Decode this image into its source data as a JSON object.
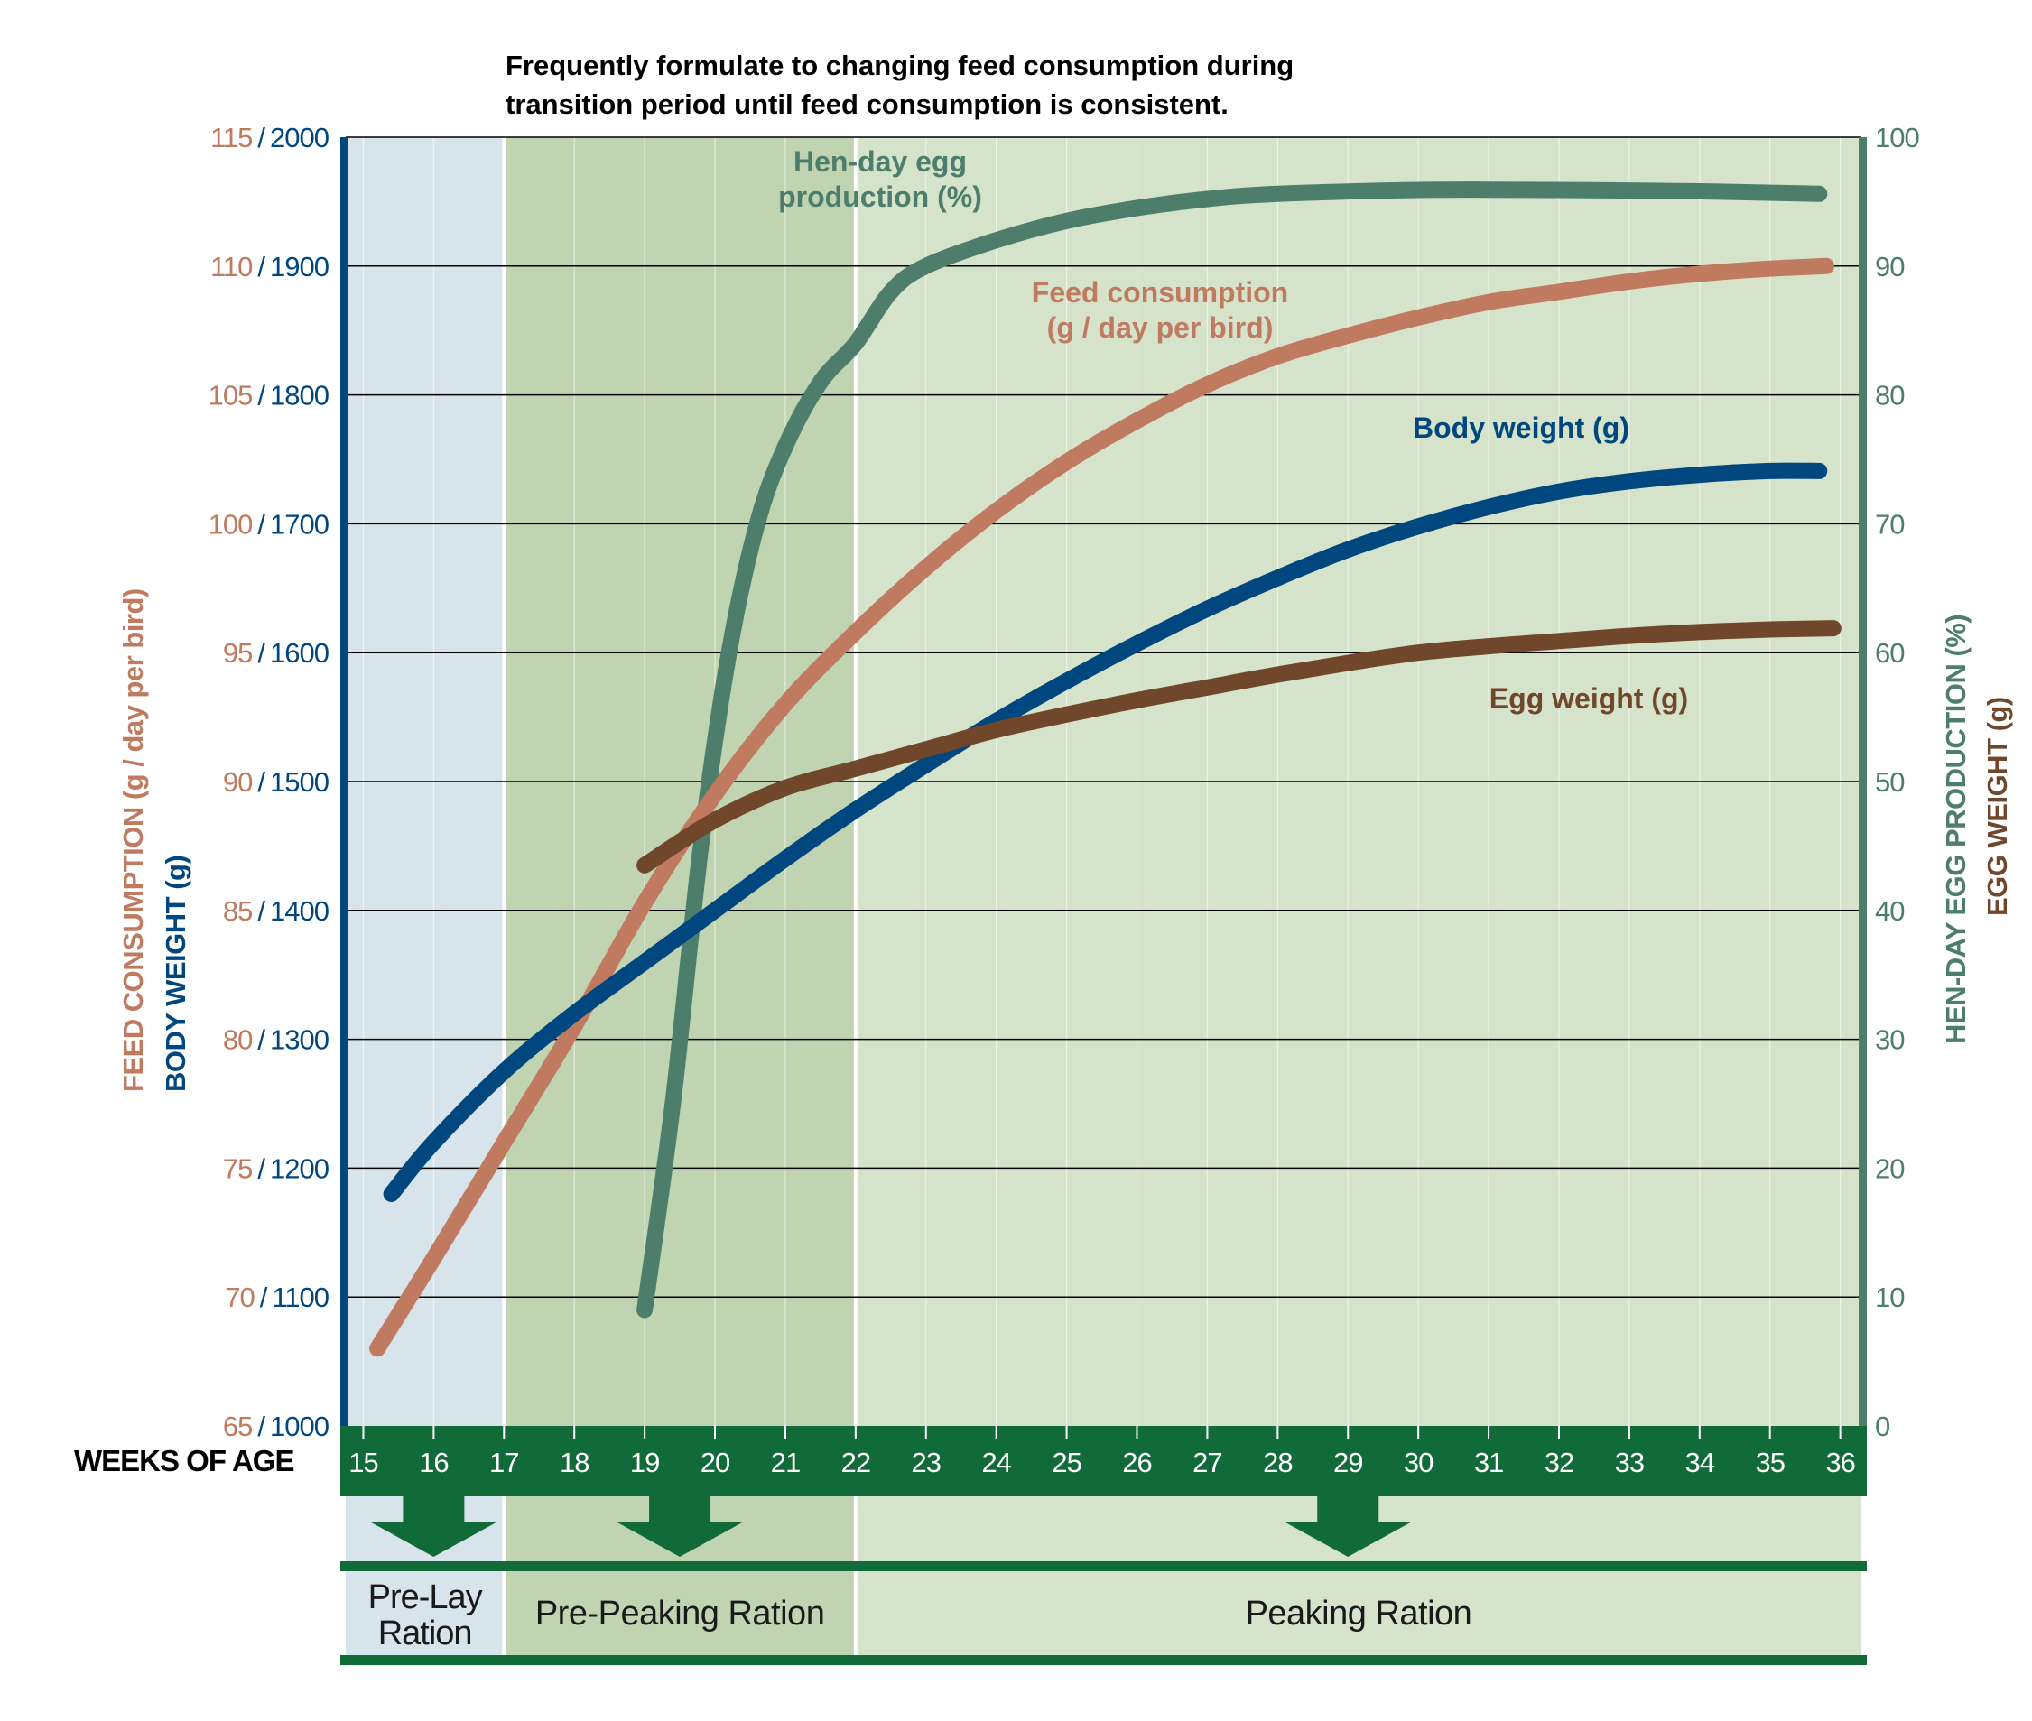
{
  "colors": {
    "feed": "#c07a60",
    "body": "#00467f",
    "egg_prod": "#4d7e6c",
    "egg_weight": "#70472a",
    "band": "#106b38",
    "prelay_bg": "#d8e4ec",
    "prepeak_bg": "#c0d4b2",
    "peak_bg": "#d6e3cb"
  },
  "header": {
    "line1": "Frequently formulate to changing feed consumption during",
    "line2": "transition period until feed consumption is consistent."
  },
  "axes": {
    "x_label": "WEEKS OF AGE",
    "left_label_feed": "FEED CONSUMPTION (g / day per bird)",
    "left_label_body": "BODY WEIGHT (g)",
    "right_label_prod": "HEN-DAY EGG PRODUCTION (%)",
    "right_label_egg": "EGG WEIGHT (g)",
    "left_separator": "/"
  },
  "phases": [
    {
      "name": "prelay",
      "lines": [
        "Pre-Lay",
        "Ration"
      ],
      "x_start": 15,
      "x_end": 17
    },
    {
      "name": "prepeak",
      "lines": [
        "Pre-Peaking Ration"
      ],
      "x_start": 17,
      "x_end": 22
    },
    {
      "name": "peak",
      "lines": [
        "Peaking Ration"
      ],
      "x_start": 22,
      "x_end": 36.3
    }
  ],
  "chart_data": {
    "type": "line",
    "x_ticks": [
      15,
      16,
      17,
      18,
      19,
      20,
      21,
      22,
      23,
      24,
      25,
      26,
      27,
      28,
      29,
      30,
      31,
      32,
      33,
      34,
      35,
      36
    ],
    "left_ticks_feed": [
      65,
      70,
      75,
      80,
      85,
      90,
      95,
      100,
      105,
      110,
      115
    ],
    "left_ticks_body": [
      1000,
      1100,
      1200,
      1300,
      1400,
      1500,
      1600,
      1700,
      1800,
      1900,
      2000
    ],
    "right_ticks": [
      0,
      10,
      20,
      30,
      40,
      50,
      60,
      70,
      80,
      90,
      100
    ],
    "xlim": [
      14.75,
      36.3
    ],
    "ylim_feed": [
      65,
      115
    ],
    "ylim_body": [
      1000,
      2000
    ],
    "ylim_right": [
      0,
      100
    ],
    "series": [
      {
        "name": "Hen-day egg production (%)",
        "label_lines": [
          "Hen-day egg",
          "production (%)"
        ],
        "axis": "right",
        "color_key": "egg_prod",
        "points": [
          [
            19,
            9
          ],
          [
            19.4,
            25
          ],
          [
            19.8,
            45
          ],
          [
            20.2,
            60
          ],
          [
            20.6,
            70
          ],
          [
            21,
            76
          ],
          [
            21.5,
            81
          ],
          [
            22,
            84
          ],
          [
            22.5,
            88
          ],
          [
            23,
            90
          ],
          [
            24,
            92
          ],
          [
            25,
            93.5
          ],
          [
            26,
            94.5
          ],
          [
            27,
            95.2
          ],
          [
            28,
            95.6
          ],
          [
            30,
            95.9
          ],
          [
            32,
            95.9
          ],
          [
            34,
            95.8
          ],
          [
            35.7,
            95.6
          ]
        ]
      },
      {
        "name": "Feed consumption (g / day per bird)",
        "label_lines": [
          "Feed consumption",
          "(g / day per bird)"
        ],
        "axis": "left_feed",
        "color_key": "feed",
        "points": [
          [
            15.2,
            68
          ],
          [
            16,
            71.5
          ],
          [
            17,
            76
          ],
          [
            18,
            80.5
          ],
          [
            19,
            85.3
          ],
          [
            20,
            89.5
          ],
          [
            21,
            93
          ],
          [
            22,
            95.8
          ],
          [
            23,
            98.3
          ],
          [
            24,
            100.5
          ],
          [
            25,
            102.4
          ],
          [
            26,
            104
          ],
          [
            27,
            105.4
          ],
          [
            28,
            106.5
          ],
          [
            29,
            107.3
          ],
          [
            30,
            108
          ],
          [
            31,
            108.6
          ],
          [
            32,
            109
          ],
          [
            33,
            109.4
          ],
          [
            34,
            109.7
          ],
          [
            35,
            109.9
          ],
          [
            35.8,
            110
          ]
        ]
      },
      {
        "name": "Body weight (g)",
        "label_lines": [
          "Body weight (g)"
        ],
        "axis": "left_body",
        "color_key": "body",
        "points": [
          [
            15.4,
            1180
          ],
          [
            16,
            1220
          ],
          [
            17,
            1275
          ],
          [
            18,
            1320
          ],
          [
            19,
            1360
          ],
          [
            20,
            1400
          ],
          [
            21,
            1440
          ],
          [
            22,
            1478
          ],
          [
            23,
            1513
          ],
          [
            24,
            1547
          ],
          [
            25,
            1578
          ],
          [
            26,
            1607
          ],
          [
            27,
            1634
          ],
          [
            28,
            1658
          ],
          [
            29,
            1680
          ],
          [
            30,
            1698
          ],
          [
            31,
            1713
          ],
          [
            32,
            1725
          ],
          [
            33,
            1733
          ],
          [
            34,
            1738
          ],
          [
            35,
            1741
          ],
          [
            35.7,
            1741
          ]
        ]
      },
      {
        "name": "Egg weight (g)",
        "label_lines": [
          "Egg weight (g)"
        ],
        "axis": "right",
        "color_key": "egg_weight",
        "points": [
          [
            19,
            43.5
          ],
          [
            20,
            47
          ],
          [
            21,
            49.5
          ],
          [
            22,
            51
          ],
          [
            23,
            52.5
          ],
          [
            24,
            54
          ],
          [
            25,
            55.2
          ],
          [
            26,
            56.3
          ],
          [
            27,
            57.3
          ],
          [
            28,
            58.3
          ],
          [
            29,
            59.2
          ],
          [
            30,
            60
          ],
          [
            31,
            60.5
          ],
          [
            32,
            60.9
          ],
          [
            33,
            61.3
          ],
          [
            34,
            61.6
          ],
          [
            35,
            61.8
          ],
          [
            35.9,
            61.9
          ]
        ]
      }
    ],
    "grid": true
  }
}
